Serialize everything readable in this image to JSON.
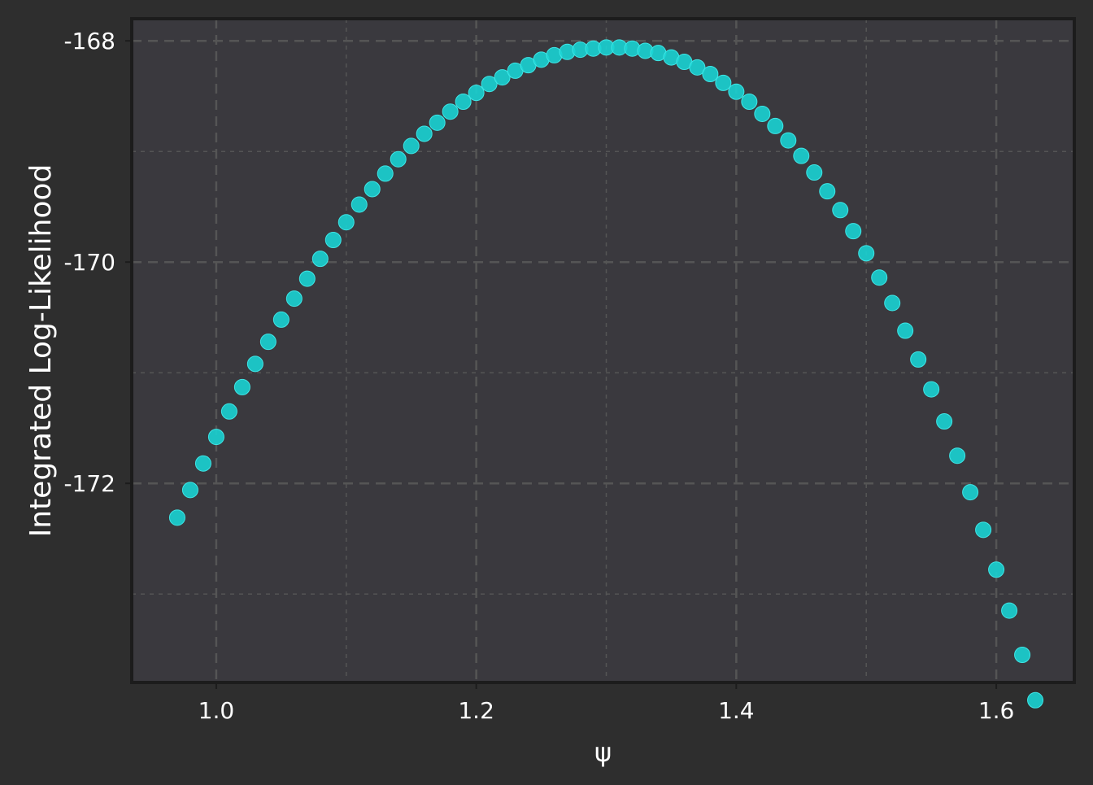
{
  "chart_data": {
    "type": "scatter",
    "title": "",
    "xlabel": "ψ",
    "ylabel": "Integrated Log-Likelihood",
    "xlim": [
      0.935,
      1.66
    ],
    "ylim": [
      -173.8,
      -167.8
    ],
    "xticks": [
      1.0,
      1.2,
      1.4,
      1.6
    ],
    "xtick_labels": [
      "1.0",
      "1.2",
      "1.4",
      "1.6"
    ],
    "yticks": [
      -168,
      -170,
      -172
    ],
    "ytick_labels": [
      "-168",
      "-170",
      "-172"
    ],
    "grid": true,
    "legend": "none",
    "colors": {
      "figure_background": "#2e2e2e",
      "plot_background": "#3a393e",
      "frame": "#1c1c1c",
      "grid": "#555555",
      "marker": "#19d3d3",
      "text": "#ffffff"
    },
    "series": [
      {
        "x": [
          0.97,
          0.98,
          0.99,
          1.0,
          1.01,
          1.02,
          1.03,
          1.04,
          1.05,
          1.06,
          1.07,
          1.08,
          1.09,
          1.1,
          1.11,
          1.12,
          1.13,
          1.14,
          1.15,
          1.16,
          1.17,
          1.18,
          1.19,
          1.2,
          1.21,
          1.22,
          1.23,
          1.24,
          1.25,
          1.26,
          1.27,
          1.28,
          1.29,
          1.3,
          1.31,
          1.32,
          1.33,
          1.34,
          1.35,
          1.36,
          1.37,
          1.38,
          1.39,
          1.4,
          1.41,
          1.42,
          1.43,
          1.44,
          1.45,
          1.46,
          1.47,
          1.48,
          1.49,
          1.5,
          1.51,
          1.52,
          1.53,
          1.54,
          1.55,
          1.56,
          1.57,
          1.58,
          1.59,
          1.6,
          1.61,
          1.62,
          1.63
        ],
        "y": [
          -172.31,
          -172.06,
          -171.82,
          -171.58,
          -171.35,
          -171.13,
          -170.92,
          -170.72,
          -170.52,
          -170.33,
          -170.15,
          -169.97,
          -169.8,
          -169.64,
          -169.48,
          -169.34,
          -169.2,
          -169.07,
          -168.95,
          -168.84,
          -168.74,
          -168.64,
          -168.55,
          -168.47,
          -168.39,
          -168.33,
          -168.27,
          -168.22,
          -168.17,
          -168.13,
          -168.1,
          -168.08,
          -168.07,
          -168.06,
          -168.06,
          -168.07,
          -168.09,
          -168.11,
          -168.15,
          -168.19,
          -168.24,
          -168.3,
          -168.38,
          -168.46,
          -168.55,
          -168.66,
          -168.77,
          -168.9,
          -169.04,
          -169.19,
          -169.36,
          -169.53,
          -169.72,
          -169.92,
          -170.14,
          -170.37,
          -170.62,
          -170.88,
          -171.15,
          -171.44,
          -171.75,
          -172.08,
          -172.42,
          -172.78,
          -173.15,
          -173.55,
          -173.96
        ]
      }
    ]
  }
}
